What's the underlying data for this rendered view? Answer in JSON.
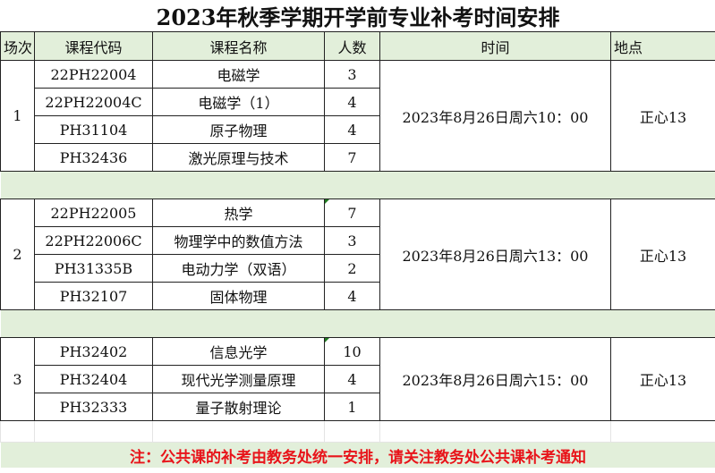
{
  "title": "2023年秋季学期开学前专业补考时间安排",
  "headers": [
    "场次",
    "课程代码",
    "课程名称",
    "人数",
    "时间",
    "地点"
  ],
  "sessions": [
    {
      "no": "1",
      "time": "2023年8月26日周六10：00",
      "place": "正心13",
      "courses": [
        {
          "code": "22PH22004",
          "name": "电磁学",
          "count": "3"
        },
        {
          "code": "22PH22004C",
          "name": "电磁学（1）",
          "count": "4"
        },
        {
          "code": "PH31104",
          "name": "原子物理",
          "count": "4"
        },
        {
          "code": "PH32436",
          "name": "激光原理与技术",
          "count": "7"
        }
      ]
    },
    {
      "no": "2",
      "time": "2023年8月26日周六13：00",
      "place": "正心13",
      "courses": [
        {
          "code": "22PH22005",
          "name": "热学",
          "count": "7"
        },
        {
          "code": "22PH22006C",
          "name": "物理学中的数值方法",
          "count": "3"
        },
        {
          "code": "PH31335B",
          "name": "电动力学（双语）",
          "count": "2"
        },
        {
          "code": "PH32107",
          "name": "固体物理",
          "count": "4"
        }
      ]
    },
    {
      "no": "3",
      "time": "2023年8月26日周六15：00",
      "place": "正心13",
      "courses": [
        {
          "code": "PH32402",
          "name": "信息光学",
          "count": "10"
        },
        {
          "code": "PH32404",
          "name": "现代光学测量原理",
          "count": "4"
        },
        {
          "code": "PH32333",
          "name": "量子散射理论",
          "count": "1"
        }
      ]
    }
  ],
  "note": "注：公共课的补考由教务处统一安排，请关注教务处公共课补考通知",
  "colors": {
    "header_bg": "#e2efda",
    "note_text": "#e8141a"
  }
}
